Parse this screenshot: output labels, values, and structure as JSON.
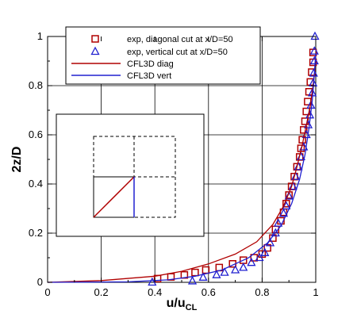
{
  "chart_data": {
    "type": "scatter",
    "xlim": [
      0,
      1
    ],
    "ylim": [
      0,
      1
    ],
    "x_ticks": [
      0,
      0.2,
      0.4,
      0.6,
      0.8,
      1
    ],
    "y_ticks": [
      0,
      0.2,
      0.4,
      0.6,
      0.8,
      1
    ],
    "x_tick_labels": [
      "0",
      "0.2",
      "0.4",
      "0.6",
      "0.8",
      "1"
    ],
    "y_tick_labels": [
      "0",
      "0.2",
      "0.4",
      "0.6",
      "0.8",
      "1"
    ],
    "xlabel_main": "u/u",
    "xlabel_sub": "CL",
    "ylabel": "2z/D",
    "grid": true,
    "legend_position": "top",
    "legend": [
      {
        "label": "exp, diagonal cut at x/D=50",
        "marker": "square",
        "color": "#b00000"
      },
      {
        "label": "exp, vertical cut at x/D=50",
        "marker": "triangle",
        "color": "#2020d0"
      },
      {
        "label": "CFL3D diag",
        "marker": "line",
        "color": "#b00000"
      },
      {
        "label": "CFL3D vert",
        "marker": "line",
        "color": "#2020d0"
      }
    ],
    "series": [
      {
        "name": "exp, diagonal cut at x/D=50",
        "kind": "markers",
        "marker": "square",
        "color": "#b00000",
        "points": [
          [
            0.41,
            0.015
          ],
          [
            0.46,
            0.022
          ],
          [
            0.51,
            0.03
          ],
          [
            0.55,
            0.04
          ],
          [
            0.59,
            0.05
          ],
          [
            0.64,
            0.06
          ],
          [
            0.69,
            0.075
          ],
          [
            0.73,
            0.09
          ],
          [
            0.77,
            0.1
          ],
          [
            0.8,
            0.115
          ],
          [
            0.82,
            0.14
          ],
          [
            0.84,
            0.18
          ],
          [
            0.85,
            0.215
          ],
          [
            0.87,
            0.25
          ],
          [
            0.88,
            0.285
          ],
          [
            0.89,
            0.32
          ],
          [
            0.9,
            0.355
          ],
          [
            0.91,
            0.39
          ],
          [
            0.92,
            0.43
          ],
          [
            0.93,
            0.47
          ],
          [
            0.94,
            0.51
          ],
          [
            0.945,
            0.545
          ],
          [
            0.95,
            0.58
          ],
          [
            0.955,
            0.62
          ],
          [
            0.96,
            0.655
          ],
          [
            0.965,
            0.695
          ],
          [
            0.97,
            0.735
          ],
          [
            0.975,
            0.775
          ],
          [
            0.98,
            0.815
          ],
          [
            0.985,
            0.855
          ],
          [
            0.99,
            0.895
          ],
          [
            0.99,
            0.935
          ]
        ]
      },
      {
        "name": "exp, vertical cut at x/D=50",
        "kind": "markers",
        "marker": "triangle",
        "color": "#2020d0",
        "points": [
          [
            0.39,
            0.0
          ],
          [
            0.54,
            0.005
          ],
          [
            0.58,
            0.02
          ],
          [
            0.63,
            0.03
          ],
          [
            0.66,
            0.04
          ],
          [
            0.7,
            0.05
          ],
          [
            0.73,
            0.06
          ],
          [
            0.76,
            0.08
          ],
          [
            0.79,
            0.1
          ],
          [
            0.81,
            0.12
          ],
          [
            0.83,
            0.16
          ],
          [
            0.85,
            0.2
          ],
          [
            0.86,
            0.24
          ],
          [
            0.88,
            0.28
          ],
          [
            0.89,
            0.31
          ],
          [
            0.9,
            0.35
          ],
          [
            0.915,
            0.39
          ],
          [
            0.925,
            0.43
          ],
          [
            0.935,
            0.47
          ],
          [
            0.945,
            0.51
          ],
          [
            0.955,
            0.55
          ],
          [
            0.965,
            0.6
          ],
          [
            0.972,
            0.64
          ],
          [
            0.978,
            0.68
          ],
          [
            0.982,
            0.72
          ],
          [
            0.987,
            0.77
          ],
          [
            0.99,
            0.81
          ],
          [
            0.992,
            0.85
          ],
          [
            0.995,
            0.9
          ],
          [
            0.995,
            0.94
          ],
          [
            0.997,
            1.0
          ]
        ]
      },
      {
        "name": "CFL3D diag",
        "kind": "line",
        "color": "#b00000",
        "points": [
          [
            0.0,
            0.0
          ],
          [
            0.2,
            0.007
          ],
          [
            0.4,
            0.025
          ],
          [
            0.5,
            0.045
          ],
          [
            0.6,
            0.075
          ],
          [
            0.7,
            0.115
          ],
          [
            0.78,
            0.165
          ],
          [
            0.84,
            0.235
          ],
          [
            0.88,
            0.31
          ],
          [
            0.91,
            0.39
          ],
          [
            0.93,
            0.47
          ],
          [
            0.95,
            0.56
          ],
          [
            0.965,
            0.64
          ],
          [
            0.98,
            0.72
          ],
          [
            0.99,
            0.8
          ],
          [
            0.995,
            0.85
          ]
        ]
      },
      {
        "name": "CFL3D vert",
        "kind": "line",
        "color": "#2020d0",
        "points": [
          [
            0.0,
            0.0
          ],
          [
            0.3,
            0.002
          ],
          [
            0.45,
            0.01
          ],
          [
            0.55,
            0.025
          ],
          [
            0.65,
            0.05
          ],
          [
            0.75,
            0.1
          ],
          [
            0.82,
            0.16
          ],
          [
            0.87,
            0.23
          ],
          [
            0.91,
            0.32
          ],
          [
            0.94,
            0.42
          ],
          [
            0.96,
            0.52
          ],
          [
            0.975,
            0.63
          ],
          [
            0.987,
            0.74
          ],
          [
            0.993,
            0.82
          ],
          [
            0.998,
            0.9
          ],
          [
            1.0,
            0.93
          ]
        ]
      }
    ],
    "inset": {
      "description": "cut-plane sketch",
      "diag_line_color": "#b00000",
      "vert_line_color": "#2020d0"
    }
  }
}
